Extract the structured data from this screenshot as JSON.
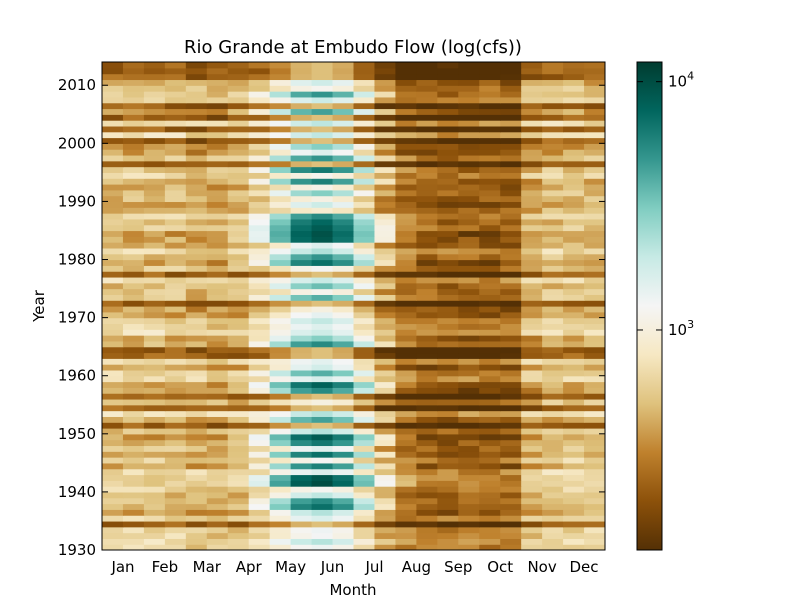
{
  "chart_data": {
    "type": "heatmap",
    "title": "Rio Grande at Embudo Flow (log(cfs))",
    "xlabel": "Month",
    "ylabel": "Year",
    "x_ticks": [
      "Jan",
      "Feb",
      "Mar",
      "Apr",
      "May",
      "Jun",
      "Jul",
      "Aug",
      "Sep",
      "Oct",
      "Nov",
      "Dec"
    ],
    "y_ticks": [
      "1930",
      "1940",
      "1950",
      "1960",
      "1970",
      "1980",
      "1990",
      "2000",
      "2010"
    ],
    "ylim": [
      1930,
      2014
    ],
    "xlim_day_of_year": [
      1,
      365
    ],
    "colorbar": {
      "scale": "log",
      "colormap": "BrBG",
      "range_cfs": [
        130,
        12000
      ],
      "ticks": [
        {
          "value": 1000,
          "base": "10",
          "exp": "3"
        },
        {
          "value": 10000,
          "base": "10",
          "exp": "4"
        }
      ]
    },
    "flow_model": {
      "baseflow_cfs": 450,
      "peak_month": 5.7,
      "peak_width_months": 1.0,
      "wet_years_peak_cfs": {
        "1937": 7000,
        "1938": 5500,
        "1941": 10000,
        "1942": 9000,
        "1944": 6000,
        "1946": 7000,
        "1948": 6500,
        "1949": 8500,
        "1952": 4500,
        "1957": 5500,
        "1958": 8000,
        "1960": 4000,
        "1965": 5500,
        "1966": 3000,
        "1973": 4000,
        "1975": 3500,
        "1979": 7000,
        "1980": 5000,
        "1983": 9000,
        "1984": 9500,
        "1985": 8500,
        "1986": 7500,
        "1987": 5500,
        "1991": 3000,
        "1993": 6000,
        "1995": 6500,
        "1997": 5000,
        "1999": 3000,
        "2005": 4500,
        "2008": 5000
      },
      "dry_years": [
        1934,
        1951,
        1954,
        1956,
        1963,
        1964,
        1972,
        1977,
        1996,
        2000,
        2002,
        2004,
        2006,
        2011,
        2012,
        2013
      ]
    }
  }
}
